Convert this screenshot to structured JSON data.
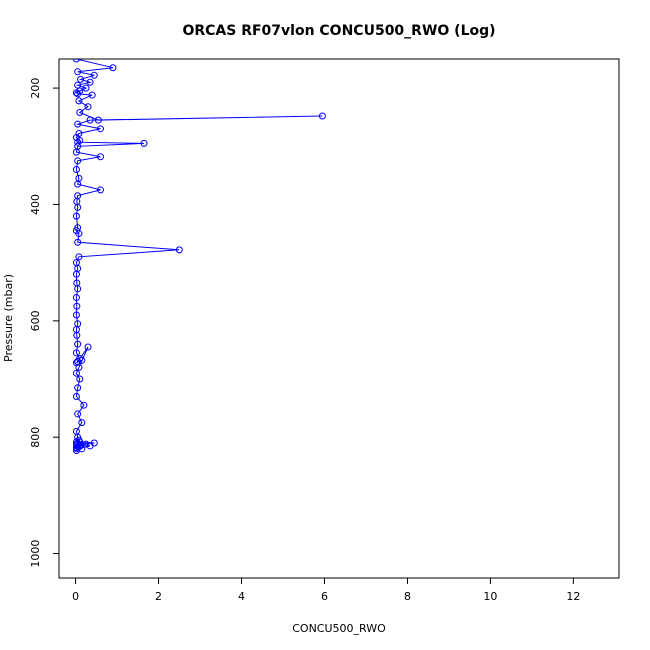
{
  "chart_data": {
    "type": "line",
    "title": "ORCAS RF07vlon CONCU500_RWO (Log)",
    "xlabel": "CONCU500_RWO",
    "ylabel": "Pressure (mbar)",
    "xlim": [
      -0.4,
      13.1
    ],
    "ylim": [
      1042,
      150
    ],
    "y_inverted": true,
    "x_ticks": [
      0,
      2,
      4,
      6,
      8,
      10,
      12
    ],
    "y_ticks": [
      200,
      400,
      600,
      800,
      1000
    ],
    "grid": false,
    "legend": "none",
    "marker": "open-circle",
    "color": "#0000ff",
    "series": [
      {
        "x": [
          0.02,
          0.9,
          0.05,
          0.45,
          0.12,
          0.35,
          0.05,
          0.25,
          0.1,
          0.02,
          0.05,
          0.4,
          0.08,
          0.3,
          0.1,
          0.55,
          5.95,
          0.35,
          0.05,
          0.6,
          0.08,
          0.02,
          0.1,
          0.05,
          1.65,
          0.05,
          0.02,
          0.6,
          0.05,
          0.02,
          0.08,
          0.05,
          0.6,
          0.05,
          0.03,
          0.05,
          0.02,
          0.05,
          0.02,
          0.08,
          0.05,
          2.5,
          0.08,
          0.02,
          0.05,
          0.02,
          0.03,
          0.05,
          0.02,
          0.03,
          0.02,
          0.05,
          0.02,
          0.03,
          0.05,
          0.02,
          0.1,
          0.05,
          0.15,
          0.02,
          0.05,
          0.3,
          0.08,
          0.02,
          0.1,
          0.05,
          0.02,
          0.2,
          0.05,
          0.15,
          0.02,
          0.05,
          0.08,
          0.02,
          0.05,
          0.02,
          0.1,
          0.05,
          0.02,
          0.03,
          0.35,
          0.05,
          0.45,
          0.1,
          0.25,
          0.05,
          0.15,
          0.02
        ],
        "y": [
          150,
          165,
          172,
          178,
          185,
          190,
          195,
          200,
          205,
          208,
          210,
          212,
          222,
          232,
          242,
          255,
          248,
          255,
          262,
          270,
          278,
          285,
          290,
          293,
          295,
          300,
          310,
          318,
          325,
          340,
          355,
          365,
          375,
          385,
          395,
          405,
          420,
          440,
          445,
          450,
          465,
          478,
          490,
          500,
          510,
          520,
          535,
          545,
          560,
          575,
          590,
          605,
          615,
          625,
          640,
          655,
          665,
          670,
          668,
          672,
          670,
          645,
          680,
          690,
          700,
          715,
          730,
          745,
          760,
          775,
          790,
          800,
          805,
          808,
          810,
          812,
          814,
          816,
          818,
          820,
          815,
          812,
          810,
          808,
          812,
          816,
          820,
          823
        ]
      }
    ]
  }
}
